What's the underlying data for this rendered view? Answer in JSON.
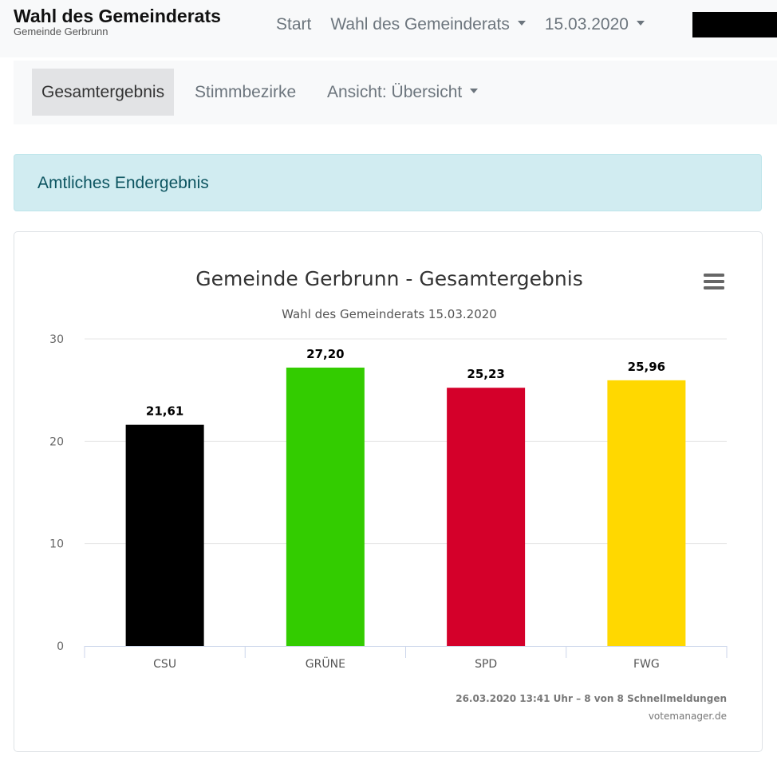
{
  "header": {
    "title": "Wahl des Gemeinderats",
    "subtitle": "Gemeinde Gerbrunn",
    "nav": [
      {
        "label": "Start",
        "dropdown": false
      },
      {
        "label": "Wahl des Gemeinderats",
        "dropdown": true
      },
      {
        "label": "15.03.2020",
        "dropdown": true
      }
    ]
  },
  "subnav": {
    "tabs": [
      {
        "label": "Gesamtergebnis",
        "active": true
      },
      {
        "label": "Stimmbezirke",
        "active": false
      },
      {
        "label": "Ansicht: Übersicht",
        "dropdown": true
      }
    ]
  },
  "alert": {
    "text": "Amtliches Endergebnis"
  },
  "chart_data": {
    "type": "bar",
    "title": "Gemeinde Gerbrunn - Gesamtergebnis",
    "subtitle": "Wahl des Gemeinderats 15.03.2020",
    "categories": [
      "CSU",
      "GRÜNE",
      "SPD",
      "FWG"
    ],
    "values": [
      21.61,
      27.2,
      25.23,
      25.96
    ],
    "value_labels": [
      "21,61",
      "27,20",
      "25,23",
      "25,96"
    ],
    "colors": [
      "#000000",
      "#33cc00",
      "#d4002a",
      "#ffd800"
    ],
    "ylim": [
      0,
      30
    ],
    "yticks": [
      0,
      10,
      20,
      30
    ],
    "grid": true,
    "credits": "26.03.2020 13:41 Uhr – 8 von 8 Schnellmeldungen",
    "credits_source": "votemanager.de",
    "menu_icon": "hamburger-menu-icon"
  }
}
